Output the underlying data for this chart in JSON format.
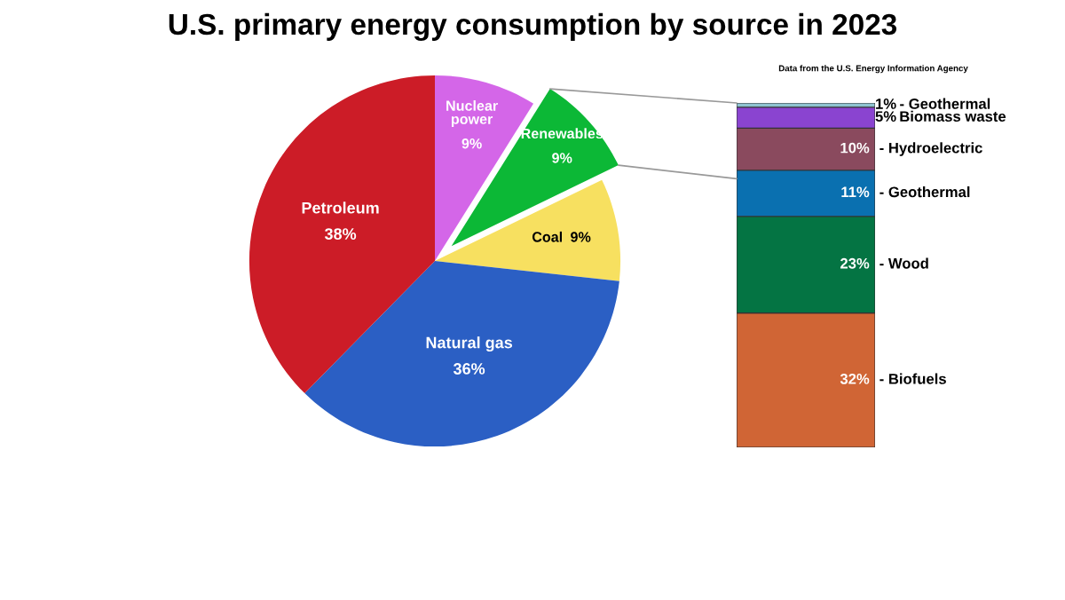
{
  "chart_data": [
    {
      "type": "pie",
      "title": "U.S. primary energy consumption by source in 2023",
      "annotations": [
        "Data from the U.S. Energy Information Agency"
      ],
      "categories": [
        "Nuclear power",
        "Renewables",
        "Coal",
        "Natural gas",
        "Petroleum"
      ],
      "values": [
        9,
        9,
        9,
        36,
        38
      ],
      "colors": [
        "#d466e8",
        "#0cb836",
        "#f7e060",
        "#2b5fc4",
        "#cc1c27"
      ],
      "value_labels": [
        "9%",
        "9%",
        "9%",
        "36%",
        "38%"
      ],
      "data_labels": true
    },
    {
      "type": "bar",
      "stacked": true,
      "categories": [
        null
      ],
      "data_labels": true,
      "series": [
        {
          "name": "- Biofuels",
          "color": "#d06535",
          "values": [
            32
          ],
          "value_labels": [
            "32%"
          ]
        },
        {
          "name": "- Wood",
          "color": "#047443",
          "values": [
            23
          ],
          "value_labels": [
            "23%"
          ]
        },
        {
          "name": "- Geothermal",
          "color": "#0a70b0",
          "values": [
            11
          ],
          "value_labels": [
            "11%"
          ]
        },
        {
          "name": "- Hydroelectric",
          "color": "#8a4a5e",
          "values": [
            10
          ],
          "value_labels": [
            "10%"
          ]
        },
        {
          "name": "Biomass waste",
          "color": "#8a44d0",
          "values": [
            5
          ],
          "value_labels": [
            "5%"
          ]
        },
        {
          "name": "- Geothermal",
          "color": "#8fc3d0",
          "values": [
            1
          ],
          "value_labels": [
            "1%"
          ]
        }
      ]
    }
  ]
}
